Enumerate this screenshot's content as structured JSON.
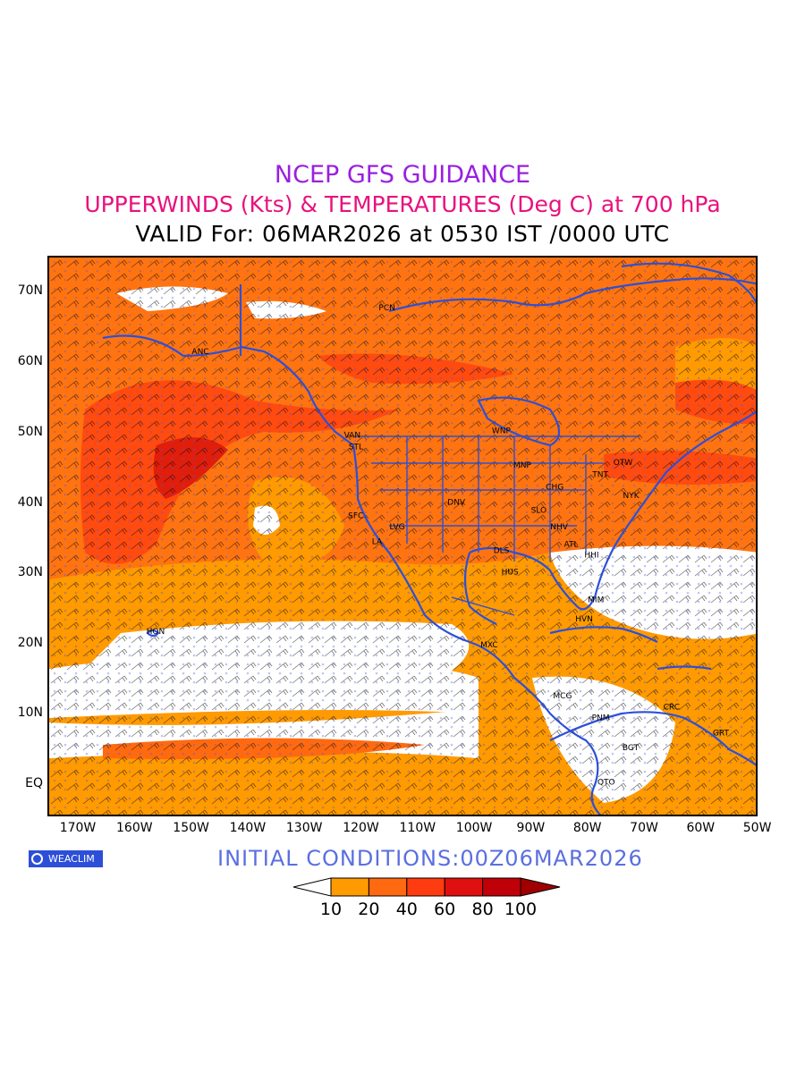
{
  "header": {
    "line1": "NCEP GFS GUIDANCE",
    "line2": "UPPERWINDS (Kts) & TEMPERATURES (Deg C) at 700 hPa",
    "line3": "VALID For: 06MAR2026 at 0530 IST /0000 UTC"
  },
  "axes": {
    "lat_labels": [
      "70N",
      "60N",
      "50N",
      "40N",
      "30N",
      "20N",
      "10N",
      "EQ"
    ],
    "lon_labels": [
      "170W",
      "160W",
      "150W",
      "140W",
      "130W",
      "120W",
      "110W",
      "100W",
      "90W",
      "80W",
      "70W",
      "60W",
      "50W"
    ]
  },
  "cities": [
    {
      "label": "ANC",
      "lon": -149.9,
      "lat": 61.2
    },
    {
      "label": "PCN",
      "lon": -117,
      "lat": 67.5
    },
    {
      "label": "VAN",
      "lon": -123.1,
      "lat": 49.3
    },
    {
      "label": "STL",
      "lon": -122.3,
      "lat": 47.6
    },
    {
      "label": "WNP",
      "lon": -97.1,
      "lat": 49.9
    },
    {
      "label": "MNP",
      "lon": -93.3,
      "lat": 45.0
    },
    {
      "label": "OTW",
      "lon": -75.7,
      "lat": 45.4
    },
    {
      "label": "TNT",
      "lon": -79.4,
      "lat": 43.7
    },
    {
      "label": "CHG",
      "lon": -87.6,
      "lat": 41.9
    },
    {
      "label": "NYK",
      "lon": -74.0,
      "lat": 40.7
    },
    {
      "label": "DNV",
      "lon": -104.9,
      "lat": 39.7
    },
    {
      "label": "SFC",
      "lon": -122.4,
      "lat": 37.8
    },
    {
      "label": "SLO",
      "lon": -90.2,
      "lat": 38.6
    },
    {
      "label": "LVG",
      "lon": -115.1,
      "lat": 36.2
    },
    {
      "label": "NHV",
      "lon": -86.8,
      "lat": 36.2
    },
    {
      "label": "LA",
      "lon": -118.2,
      "lat": 34.1
    },
    {
      "label": "ATL",
      "lon": -84.4,
      "lat": 33.7
    },
    {
      "label": "DLS",
      "lon": -96.8,
      "lat": 32.8
    },
    {
      "label": "HHI",
      "lon": -80.8,
      "lat": 32.2
    },
    {
      "label": "HUS",
      "lon": -95.4,
      "lat": 29.8
    },
    {
      "label": "MIM",
      "lon": -80.2,
      "lat": 25.8
    },
    {
      "label": "HVN",
      "lon": -82.4,
      "lat": 23.1
    },
    {
      "label": "HON",
      "lon": -157.9,
      "lat": 21.3
    },
    {
      "label": "MXC",
      "lon": -99.1,
      "lat": 19.4
    },
    {
      "label": "MCG",
      "lon": -86.3,
      "lat": 12.1
    },
    {
      "label": "CRC",
      "lon": -66.9,
      "lat": 10.5
    },
    {
      "label": "PNM",
      "lon": -79.5,
      "lat": 9.0
    },
    {
      "label": "GRT",
      "lon": -58.2,
      "lat": 6.8
    },
    {
      "label": "BGT",
      "lon": -74.1,
      "lat": 4.7
    },
    {
      "label": "QTO",
      "lon": -78.5,
      "lat": -0.2
    }
  ],
  "footer": {
    "logo_text": "WEACLIM",
    "initial_conditions": "INITIAL  CONDITIONS:00Z06MAR2026"
  },
  "legend": {
    "labels": [
      "10",
      "20",
      "40",
      "60",
      "80",
      "100"
    ],
    "colors": [
      "#ffffff",
      "#ff9a00",
      "#ff6a10",
      "#ff3c10",
      "#e01010",
      "#c00008",
      "#a00000"
    ]
  },
  "colors": {
    "coast": "#2d4fd8",
    "barb": "#000000",
    "temp": "#4a5be0"
  }
}
